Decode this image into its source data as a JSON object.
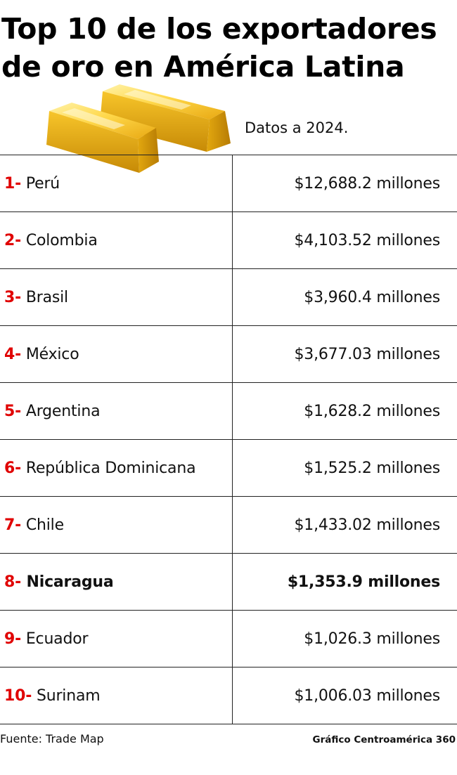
{
  "title_line1": "Top 10 de los exportadores",
  "title_line2": "de oro en América Latina",
  "subtitle": "Datos a 2024.",
  "decoration_icon": "gold-bars-icon",
  "colors": {
    "rank": "#e00000",
    "text": "#111111",
    "gold_light": "#ffe07a",
    "gold_mid": "#f4c21f",
    "gold_dark": "#c98f0a"
  },
  "chart_data": {
    "type": "table",
    "unit": "millones",
    "rows": [
      {
        "rank": "1-",
        "country": "Perú",
        "value_text": "$12,688.2 millones",
        "value": 12688.2,
        "highlight": false
      },
      {
        "rank": "2-",
        "country": "Colombia",
        "value_text": "$4,103.52 millones",
        "value": 4103.52,
        "highlight": false
      },
      {
        "rank": "3-",
        "country": "Brasil",
        "value_text": "$3,960.4 millones",
        "value": 3960.4,
        "highlight": false
      },
      {
        "rank": "4-",
        "country": "México",
        "value_text": "$3,677.03 millones",
        "value": 3677.03,
        "highlight": false
      },
      {
        "rank": "5-",
        "country": "Argentina",
        "value_text": "$1,628.2 millones",
        "value": 1628.2,
        "highlight": false
      },
      {
        "rank": "6-",
        "country": "República Dominicana",
        "value_text": "$1,525.2 millones",
        "value": 1525.2,
        "highlight": false
      },
      {
        "rank": "7-",
        "country": "Chile",
        "value_text": "$1,433.02 millones",
        "value": 1433.02,
        "highlight": false
      },
      {
        "rank": "8-",
        "country": "Nicaragua",
        "value_text": "$1,353.9 millones",
        "value": 1353.9,
        "highlight": true
      },
      {
        "rank": "9-",
        "country": "Ecuador",
        "value_text": "$1,026.3 millones",
        "value": 1026.3,
        "highlight": false
      },
      {
        "rank": "10-",
        "country": "Surinam",
        "value_text": "$1,006.03 millones",
        "value": 1006.03,
        "highlight": false
      }
    ]
  },
  "source": "Fuente: Trade Map",
  "credit": "Gráfico Centroamérica 360"
}
